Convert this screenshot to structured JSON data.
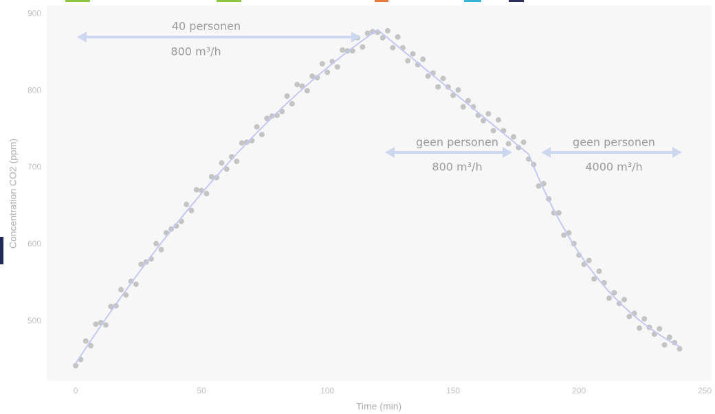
{
  "chart_data": {
    "type": "scatter",
    "xlabel": "Time (min)",
    "ylabel": "Concentration CO2 (ppm)",
    "annotations": [
      "40 personen",
      "800 m³/h",
      "geen personen",
      "800 m³/h",
      "geen personen",
      "4000 m³/h"
    ],
    "xlim": [
      -11.5,
      252.7
    ],
    "ylim": [
      422,
      911
    ],
    "xticks": [
      0,
      50,
      100,
      150,
      200,
      250
    ],
    "yticks": [
      500,
      600,
      700,
      800,
      900
    ],
    "grid": false,
    "x": [
      0,
      2,
      4,
      6,
      8,
      10,
      12,
      14,
      16,
      18,
      20,
      22,
      24,
      26,
      28,
      30,
      32,
      34,
      36,
      38,
      40,
      42,
      44,
      46,
      48,
      50,
      52,
      54,
      56,
      58,
      60,
      62,
      64,
      66,
      68,
      70,
      72,
      74,
      76,
      78,
      80,
      82,
      84,
      86,
      88,
      90,
      92,
      94,
      96,
      98,
      100,
      102,
      104,
      106,
      108,
      110,
      112,
      114,
      116,
      118,
      120,
      122,
      124,
      126,
      128,
      130,
      132,
      134,
      136,
      138,
      140,
      142,
      144,
      146,
      148,
      150,
      152,
      154,
      156,
      158,
      160,
      162,
      164,
      166,
      168,
      170,
      172,
      174,
      176,
      178,
      180,
      182,
      184,
      186,
      188,
      190,
      192,
      194,
      196,
      198,
      200,
      202,
      204,
      206,
      208,
      210,
      212,
      214,
      216,
      218,
      220,
      222,
      224,
      226,
      228,
      230,
      232,
      234,
      236,
      238,
      240
    ],
    "series": [
      {
        "type": "scatter",
        "color": "#c4c4c4",
        "values": [
          442,
          450,
          474,
          468,
          496,
          498,
          495,
          519,
          520,
          541,
          534,
          552,
          548,
          574,
          577,
          581,
          601,
          593,
          615,
          620,
          624,
          630,
          652,
          644,
          671,
          670,
          666,
          688,
          687,
          706,
          698,
          714,
          708,
          732,
          733,
          735,
          753,
          743,
          764,
          767,
          768,
          773,
          793,
          783,
          808,
          806,
          800,
          819,
          817,
          835,
          824,
          838,
          831,
          853,
          852,
          852,
          869,
          857,
          875,
          877,
          876,
          869,
          878,
          856,
          870,
          856,
          839,
          848,
          834,
          841,
          819,
          823,
          805,
          816,
          805,
          794,
          801,
          779,
          787,
          779,
          768,
          761,
          770,
          748,
          762,
          748,
          731,
          740,
          726,
          733,
          711,
          704,
          676,
          679,
          659,
          641,
          641,
          612,
          615,
          601,
          586,
          574,
          579,
          555,
          565,
          550,
          530,
          537,
          523,
          528,
          506,
          510,
          491,
          503,
          492,
          483,
          490,
          469,
          479,
          472,
          464
        ]
      },
      {
        "type": "line",
        "color": "#c5c8f0",
        "values": [
          445.0,
          455.0,
          464.8,
          474.6,
          484.3,
          493.9,
          503.3,
          512.7,
          522.1,
          531.3,
          540.4,
          549.4,
          558.4,
          567.2,
          576.0,
          584.7,
          593.2,
          601.7,
          610.1,
          618.4,
          626.6,
          634.7,
          642.7,
          650.7,
          658.5,
          666.3,
          673.9,
          681.5,
          689.0,
          696.3,
          703.6,
          710.8,
          717.9,
          724.9,
          731.8,
          738.7,
          745.4,
          752.0,
          758.6,
          765.0,
          771.4,
          777.7,
          783.9,
          789.9,
          795.9,
          801.9,
          807.7,
          813.4,
          819.0,
          824.6,
          830.0,
          835.4,
          840.6,
          845.8,
          850.9,
          855.9,
          860.7,
          865.5,
          870.3,
          874.9,
          879.4,
          874.0,
          868.6,
          863.2,
          857.8,
          852.4,
          847.0,
          841.6,
          836.2,
          830.8,
          825.4,
          820.0,
          814.6,
          809.2,
          803.8,
          798.4,
          793.0,
          787.6,
          782.2,
          776.8,
          771.4,
          766.0,
          760.6,
          755.2,
          749.8,
          744.4,
          739.0,
          733.6,
          728.2,
          722.8,
          717.4,
          701.3,
          686.1,
          671.6,
          657.9,
          644.8,
          632.5,
          620.7,
          609.5,
          598.9,
          588.9,
          579.3,
          570.2,
          561.6,
          553.4,
          545.7,
          538.3,
          531.3,
          524.7,
          518.4,
          512.4,
          506.7,
          501.3,
          496.2,
          491.3,
          486.7,
          482.3,
          478.1,
          474.2,
          470.4,
          466.9
        ]
      }
    ]
  }
}
